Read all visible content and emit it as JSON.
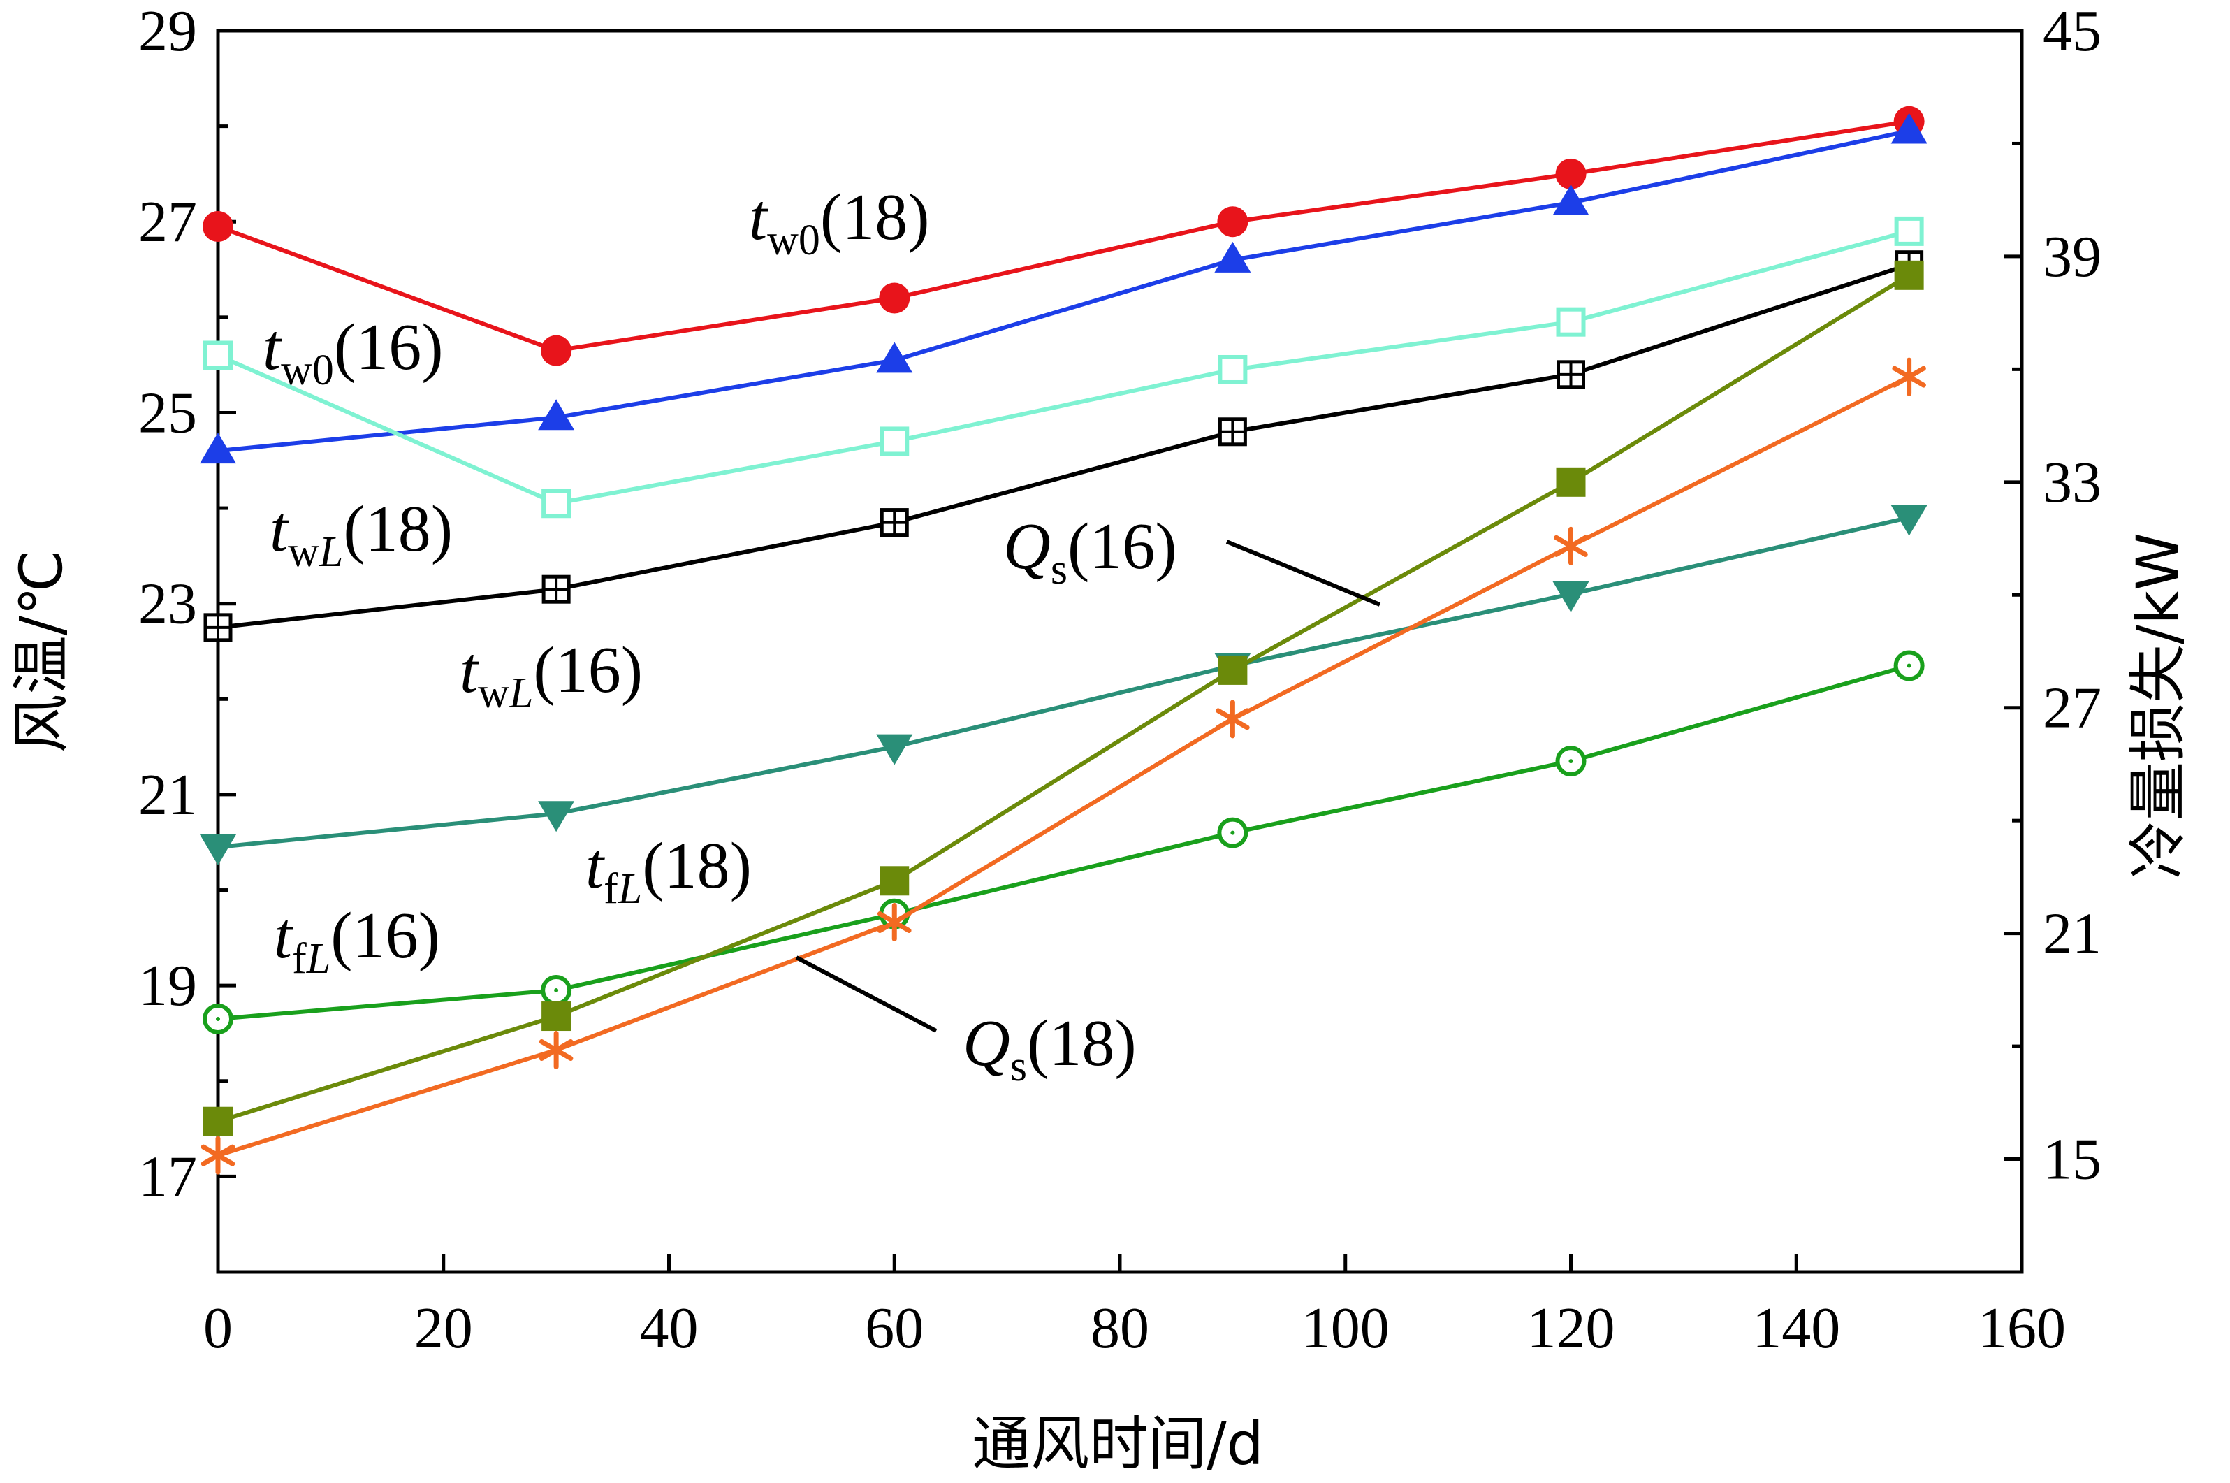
{
  "chart_data": {
    "type": "line",
    "xlabel": "通风时间/d",
    "ylabel": "风温/℃",
    "y2label": "冷量损失/kW",
    "xlim": [
      0,
      160
    ],
    "ylim": [
      16,
      29
    ],
    "y2lim": [
      12,
      45
    ],
    "x_ticks": [
      0,
      20,
      40,
      60,
      80,
      100,
      120,
      140,
      160
    ],
    "y_ticks": [
      17,
      19,
      21,
      23,
      25,
      27,
      29
    ],
    "y2_ticks": [
      15,
      21,
      27,
      33,
      39,
      45
    ],
    "grid": false,
    "x": [
      0,
      30,
      60,
      90,
      120,
      150
    ],
    "series": [
      {
        "id": "tw0_18",
        "axis": "left",
        "color": "#e8141b",
        "marker": "circle-filled",
        "values": [
          26.95,
          25.65,
          26.2,
          27.0,
          27.5,
          28.05
        ]
      },
      {
        "id": "tw0_16",
        "axis": "left",
        "color": "#1c3ee8",
        "marker": "triangle-up-filled",
        "values": [
          24.6,
          24.95,
          25.55,
          26.6,
          27.2,
          27.95
        ]
      },
      {
        "id": "twL_18",
        "axis": "left",
        "color": "#7ff2d2",
        "marker": "square-open",
        "values": [
          25.6,
          24.05,
          24.7,
          25.45,
          25.95,
          26.9
        ]
      },
      {
        "id": "twL_16",
        "axis": "left",
        "color": "#000000",
        "marker": "square-plus",
        "values": [
          22.75,
          23.15,
          23.85,
          24.8,
          25.4,
          26.55
        ]
      },
      {
        "id": "tfL_18",
        "axis": "left",
        "color": "#2a8f78",
        "marker": "triangle-down-filled",
        "values": [
          20.45,
          20.8,
          21.5,
          22.35,
          23.1,
          23.9
        ]
      },
      {
        "id": "tfL_16",
        "axis": "left",
        "color": "#19a01c",
        "marker": "circle-open",
        "values": [
          18.65,
          18.95,
          19.75,
          20.6,
          21.35,
          22.35
        ]
      },
      {
        "id": "Qs_16",
        "axis": "right",
        "color": "#6b8a0a",
        "marker": "square-filled",
        "values": [
          16.0,
          18.8,
          22.4,
          28.0,
          33.0,
          38.5
        ]
      },
      {
        "id": "Qs_18",
        "axis": "right",
        "color": "#f26a22",
        "marker": "asterisk",
        "values": [
          15.1,
          17.9,
          21.3,
          26.7,
          31.3,
          35.8
        ]
      }
    ],
    "annotations": [
      {
        "main": "t",
        "sub": "w0",
        "suffix": "(18)"
      },
      {
        "main": "t",
        "sub": "w0",
        "suffix": "(16)"
      },
      {
        "main": "t",
        "sub": "wL",
        "suffix": "(18)"
      },
      {
        "main": "t",
        "sub": "wL",
        "suffix": "(16)"
      },
      {
        "main": "t",
        "sub": "fL",
        "suffix": "(18)"
      },
      {
        "main": "t",
        "sub": "fL",
        "suffix": "(16)"
      },
      {
        "main": "Q",
        "sub": "s",
        "suffix": "(16)"
      },
      {
        "main": "Q",
        "sub": "s",
        "suffix": "(18)"
      }
    ]
  }
}
